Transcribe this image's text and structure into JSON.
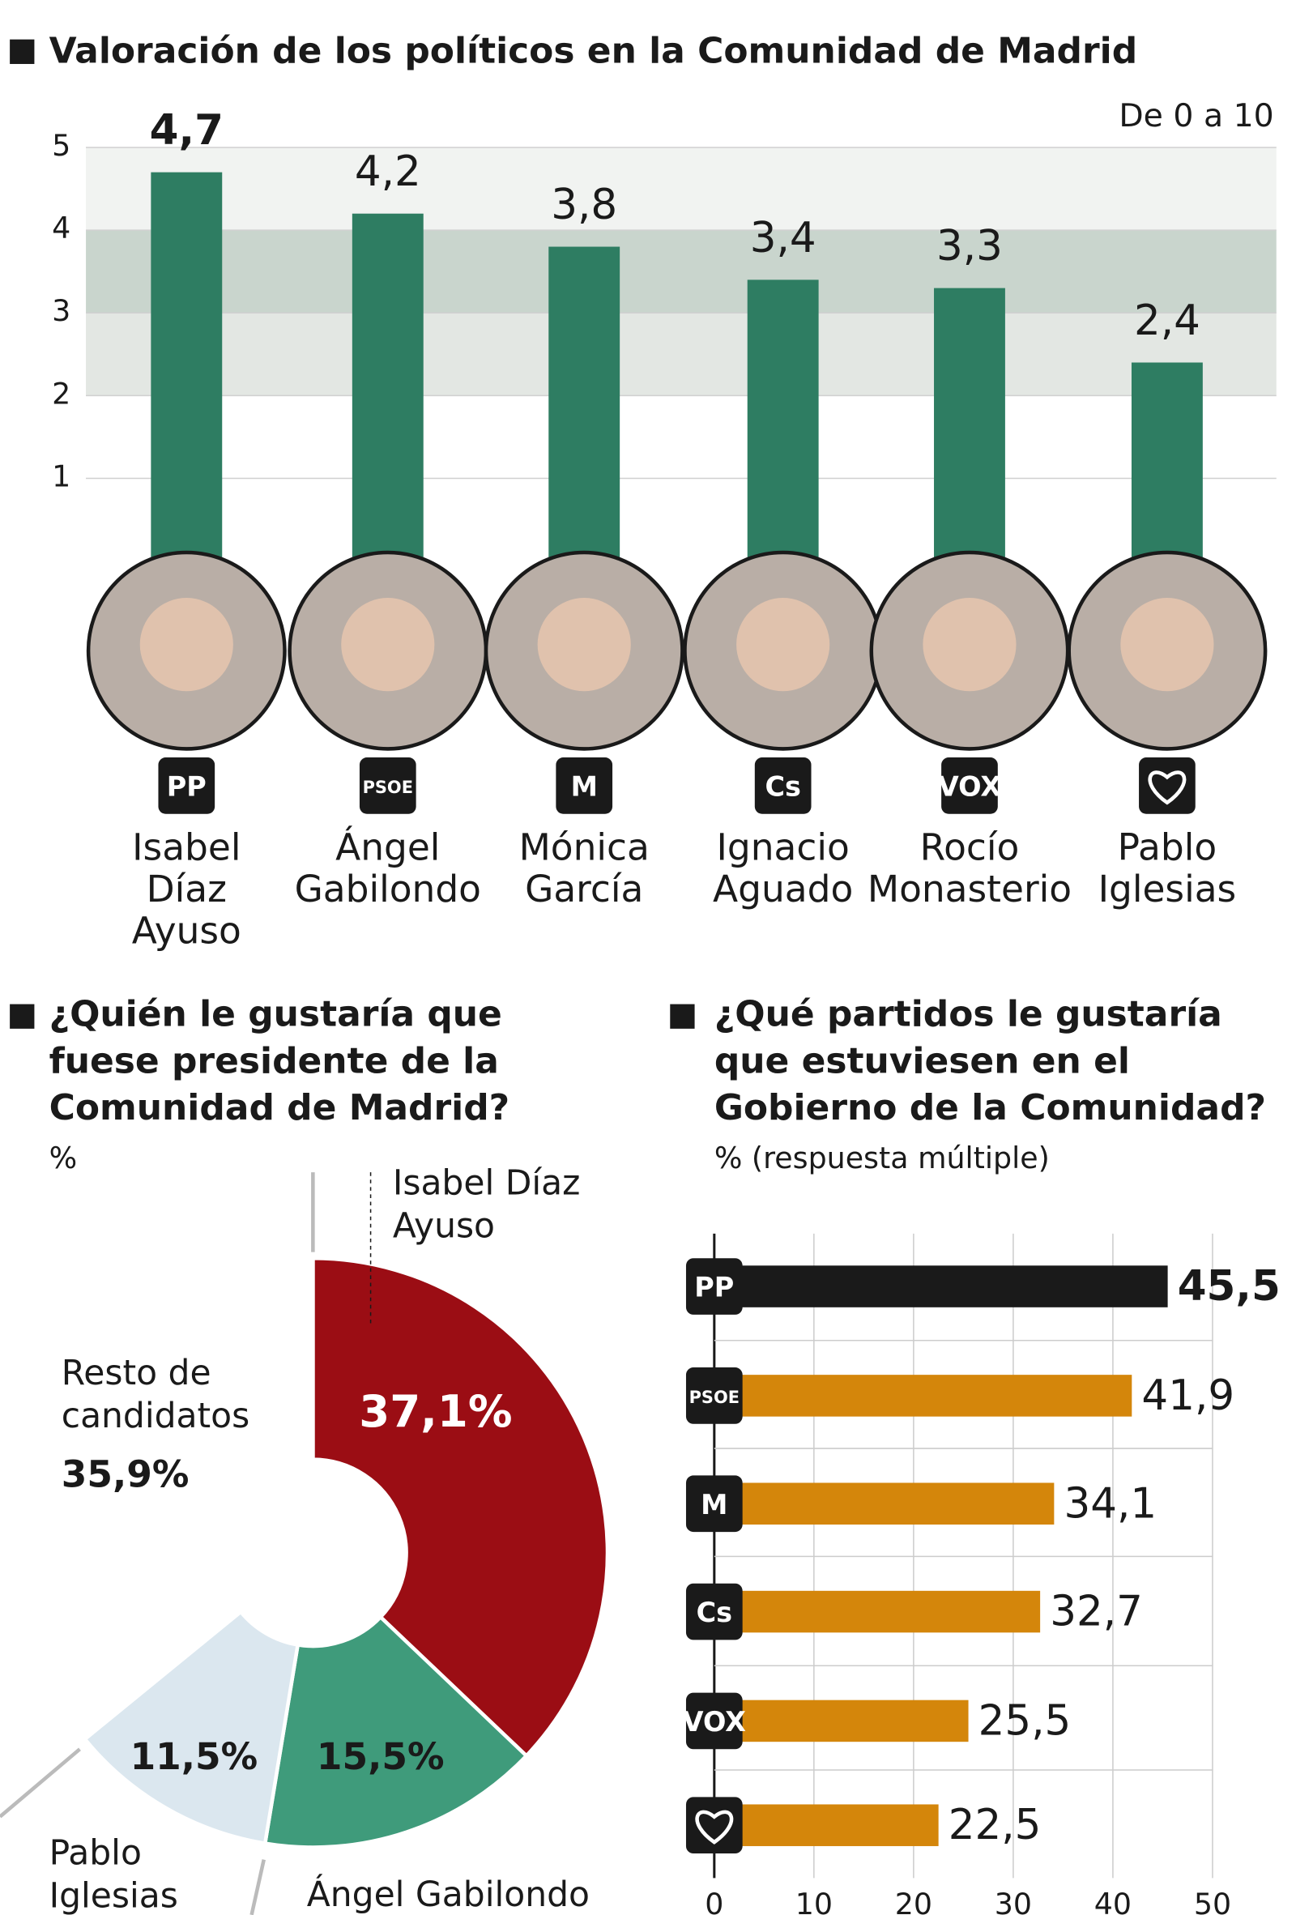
{
  "chart_data": [
    {
      "type": "bar",
      "title": "Valoración de los políticos en la Comunidad de Madrid",
      "subtitle": "De 0 a 10",
      "categories": [
        "Isabel Díaz Ayuso",
        "Ángel Gabilondo",
        "Mónica García",
        "Ignacio Aguado",
        "Rocío Monasterio",
        "Pablo Iglesias"
      ],
      "party_logos": [
        "PP",
        "PSOE",
        "M",
        "Cs",
        "VOX",
        null
      ],
      "values": [
        4.7,
        4.2,
        3.8,
        3.4,
        3.3,
        2.4
      ],
      "value_labels": [
        "4,7",
        "4,2",
        "3,8",
        "3,4",
        "3,3",
        "2,4"
      ],
      "color": "#2e7d62",
      "ylim": [
        0,
        5
      ],
      "yticks": [
        1,
        2,
        3,
        4,
        5
      ]
    },
    {
      "type": "pie",
      "title": "¿Quién le gustaría que fuese presidente de la Comunidad de Madrid?",
      "subtitle": "%",
      "categories": [
        "Isabel Díaz Ayuso",
        "Ángel Gabilondo",
        "Pablo Iglesias",
        "Resto de candidatos"
      ],
      "values": [
        37.1,
        15.5,
        11.5,
        35.9
      ],
      "value_labels": [
        "37,1%",
        "15,5%",
        "11,5%",
        "35,9%"
      ],
      "colors": [
        "#9b0d14",
        "#3f9b7b",
        "#dbe7ef",
        "#ffffff"
      ]
    },
    {
      "type": "barh",
      "title": "¿Qué partidos le gustaría que estuviesen en el Gobierno de la Comunidad?",
      "subtitle": "% (respuesta múltiple)",
      "categories": [
        "PP",
        "PSOE",
        "M",
        "Cs",
        "VOX",
        null
      ],
      "values": [
        45.5,
        41.9,
        34.1,
        32.7,
        25.5,
        22.5
      ],
      "value_labels": [
        "45,5",
        "41,9",
        "34,1",
        "32,7",
        "25,5",
        "22,5"
      ],
      "colors": [
        "#1a1a1a",
        "#d4860b",
        "#d4860b",
        "#d4860b",
        "#d4860b",
        "#d4860b"
      ],
      "xlim": [
        0,
        50
      ],
      "xticks": [
        0,
        10,
        20,
        30,
        40,
        50
      ]
    }
  ]
}
